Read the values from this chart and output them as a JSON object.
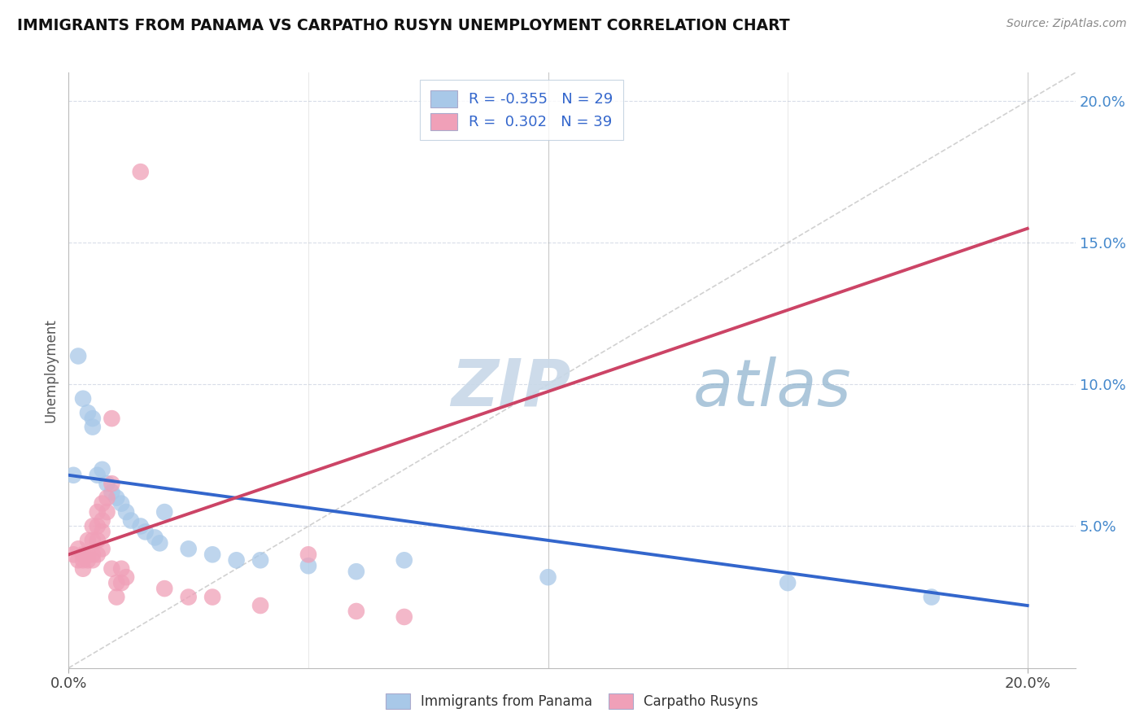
{
  "title": "IMMIGRANTS FROM PANAMA VS CARPATHO RUSYN UNEMPLOYMENT CORRELATION CHART",
  "source": "Source: ZipAtlas.com",
  "ylabel": "Unemployment",
  "blue_r": "-0.355",
  "blue_n": "29",
  "pink_r": "0.302",
  "pink_n": "39",
  "blue_color": "#a8c8e8",
  "pink_color": "#f0a0b8",
  "blue_line_color": "#3366cc",
  "pink_line_color": "#cc4466",
  "ref_line_color": "#cccccc",
  "background_color": "#ffffff",
  "grid_color": "#d8dde8",
  "blue_points": [
    [
      0.001,
      0.068
    ],
    [
      0.002,
      0.11
    ],
    [
      0.003,
      0.095
    ],
    [
      0.004,
      0.09
    ],
    [
      0.005,
      0.088
    ],
    [
      0.005,
      0.085
    ],
    [
      0.006,
      0.068
    ],
    [
      0.007,
      0.07
    ],
    [
      0.008,
      0.065
    ],
    [
      0.009,
      0.062
    ],
    [
      0.01,
      0.06
    ],
    [
      0.011,
      0.058
    ],
    [
      0.012,
      0.055
    ],
    [
      0.013,
      0.052
    ],
    [
      0.015,
      0.05
    ],
    [
      0.016,
      0.048
    ],
    [
      0.018,
      0.046
    ],
    [
      0.019,
      0.044
    ],
    [
      0.02,
      0.055
    ],
    [
      0.025,
      0.042
    ],
    [
      0.03,
      0.04
    ],
    [
      0.035,
      0.038
    ],
    [
      0.04,
      0.038
    ],
    [
      0.05,
      0.036
    ],
    [
      0.06,
      0.034
    ],
    [
      0.07,
      0.038
    ],
    [
      0.1,
      0.032
    ],
    [
      0.15,
      0.03
    ],
    [
      0.18,
      0.025
    ]
  ],
  "pink_points": [
    [
      0.001,
      0.04
    ],
    [
      0.002,
      0.042
    ],
    [
      0.002,
      0.038
    ],
    [
      0.003,
      0.04
    ],
    [
      0.003,
      0.038
    ],
    [
      0.003,
      0.035
    ],
    [
      0.004,
      0.045
    ],
    [
      0.004,
      0.04
    ],
    [
      0.004,
      0.038
    ],
    [
      0.005,
      0.05
    ],
    [
      0.005,
      0.045
    ],
    [
      0.005,
      0.04
    ],
    [
      0.005,
      0.038
    ],
    [
      0.006,
      0.055
    ],
    [
      0.006,
      0.05
    ],
    [
      0.006,
      0.045
    ],
    [
      0.006,
      0.04
    ],
    [
      0.007,
      0.058
    ],
    [
      0.007,
      0.052
    ],
    [
      0.007,
      0.048
    ],
    [
      0.007,
      0.042
    ],
    [
      0.008,
      0.06
    ],
    [
      0.008,
      0.055
    ],
    [
      0.009,
      0.088
    ],
    [
      0.009,
      0.065
    ],
    [
      0.009,
      0.035
    ],
    [
      0.01,
      0.03
    ],
    [
      0.01,
      0.025
    ],
    [
      0.011,
      0.035
    ],
    [
      0.011,
      0.03
    ],
    [
      0.012,
      0.032
    ],
    [
      0.015,
      0.175
    ],
    [
      0.02,
      0.028
    ],
    [
      0.025,
      0.025
    ],
    [
      0.03,
      0.025
    ],
    [
      0.04,
      0.022
    ],
    [
      0.05,
      0.04
    ],
    [
      0.06,
      0.02
    ],
    [
      0.07,
      0.018
    ]
  ],
  "blue_line_x": [
    0.0,
    0.2
  ],
  "blue_line_y": [
    0.068,
    0.022
  ],
  "pink_line_x": [
    0.0,
    0.2
  ],
  "pink_line_y": [
    0.04,
    0.155
  ],
  "ylim": [
    0.0,
    0.21
  ],
  "xlim": [
    0.0,
    0.21
  ],
  "yticks": [
    0.0,
    0.05,
    0.1,
    0.15,
    0.2
  ],
  "ytick_labels_right": [
    "",
    "5.0%",
    "10.0%",
    "15.0%",
    "20.0%"
  ],
  "xticks_minor": [
    0.05,
    0.1,
    0.15
  ],
  "legend_text_color": "#3366cc"
}
